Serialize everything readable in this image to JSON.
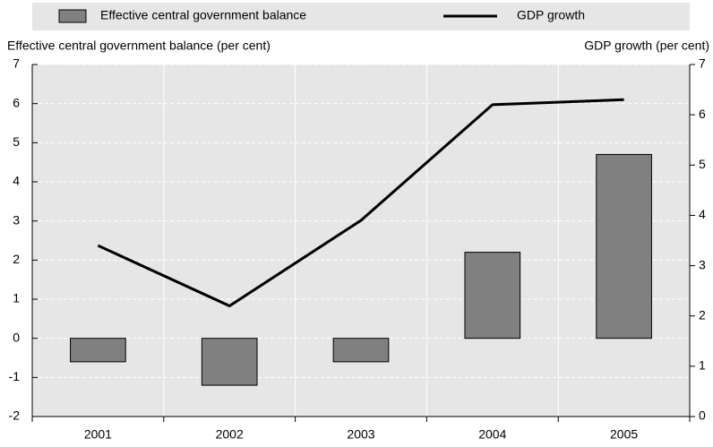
{
  "chart_data": {
    "type": "bar",
    "y_label": "Effective central government balance (per cent)",
    "y2_label": "GDP growth (per cent)",
    "categories": [
      "2001",
      "2002",
      "2003",
      "2004",
      "2005"
    ],
    "series": [
      {
        "name": "Effective central government balance",
        "type": "bar",
        "axis": "y",
        "color": "#808080",
        "values": [
          -0.6,
          -1.2,
          -0.6,
          2.2,
          4.7
        ]
      },
      {
        "name": "GDP growth",
        "type": "line",
        "axis": "y2",
        "color": "#000000",
        "values": [
          3.4,
          2.2,
          3.9,
          6.2,
          6.3
        ]
      }
    ],
    "ylim": [
      -2,
      7
    ],
    "yticks": [
      -2,
      -1,
      0,
      1,
      2,
      3,
      4,
      5,
      6,
      7
    ],
    "y2lim": [
      0,
      7
    ],
    "y2ticks": [
      0,
      1,
      2,
      3,
      4,
      5,
      6,
      7
    ],
    "grid": true
  }
}
